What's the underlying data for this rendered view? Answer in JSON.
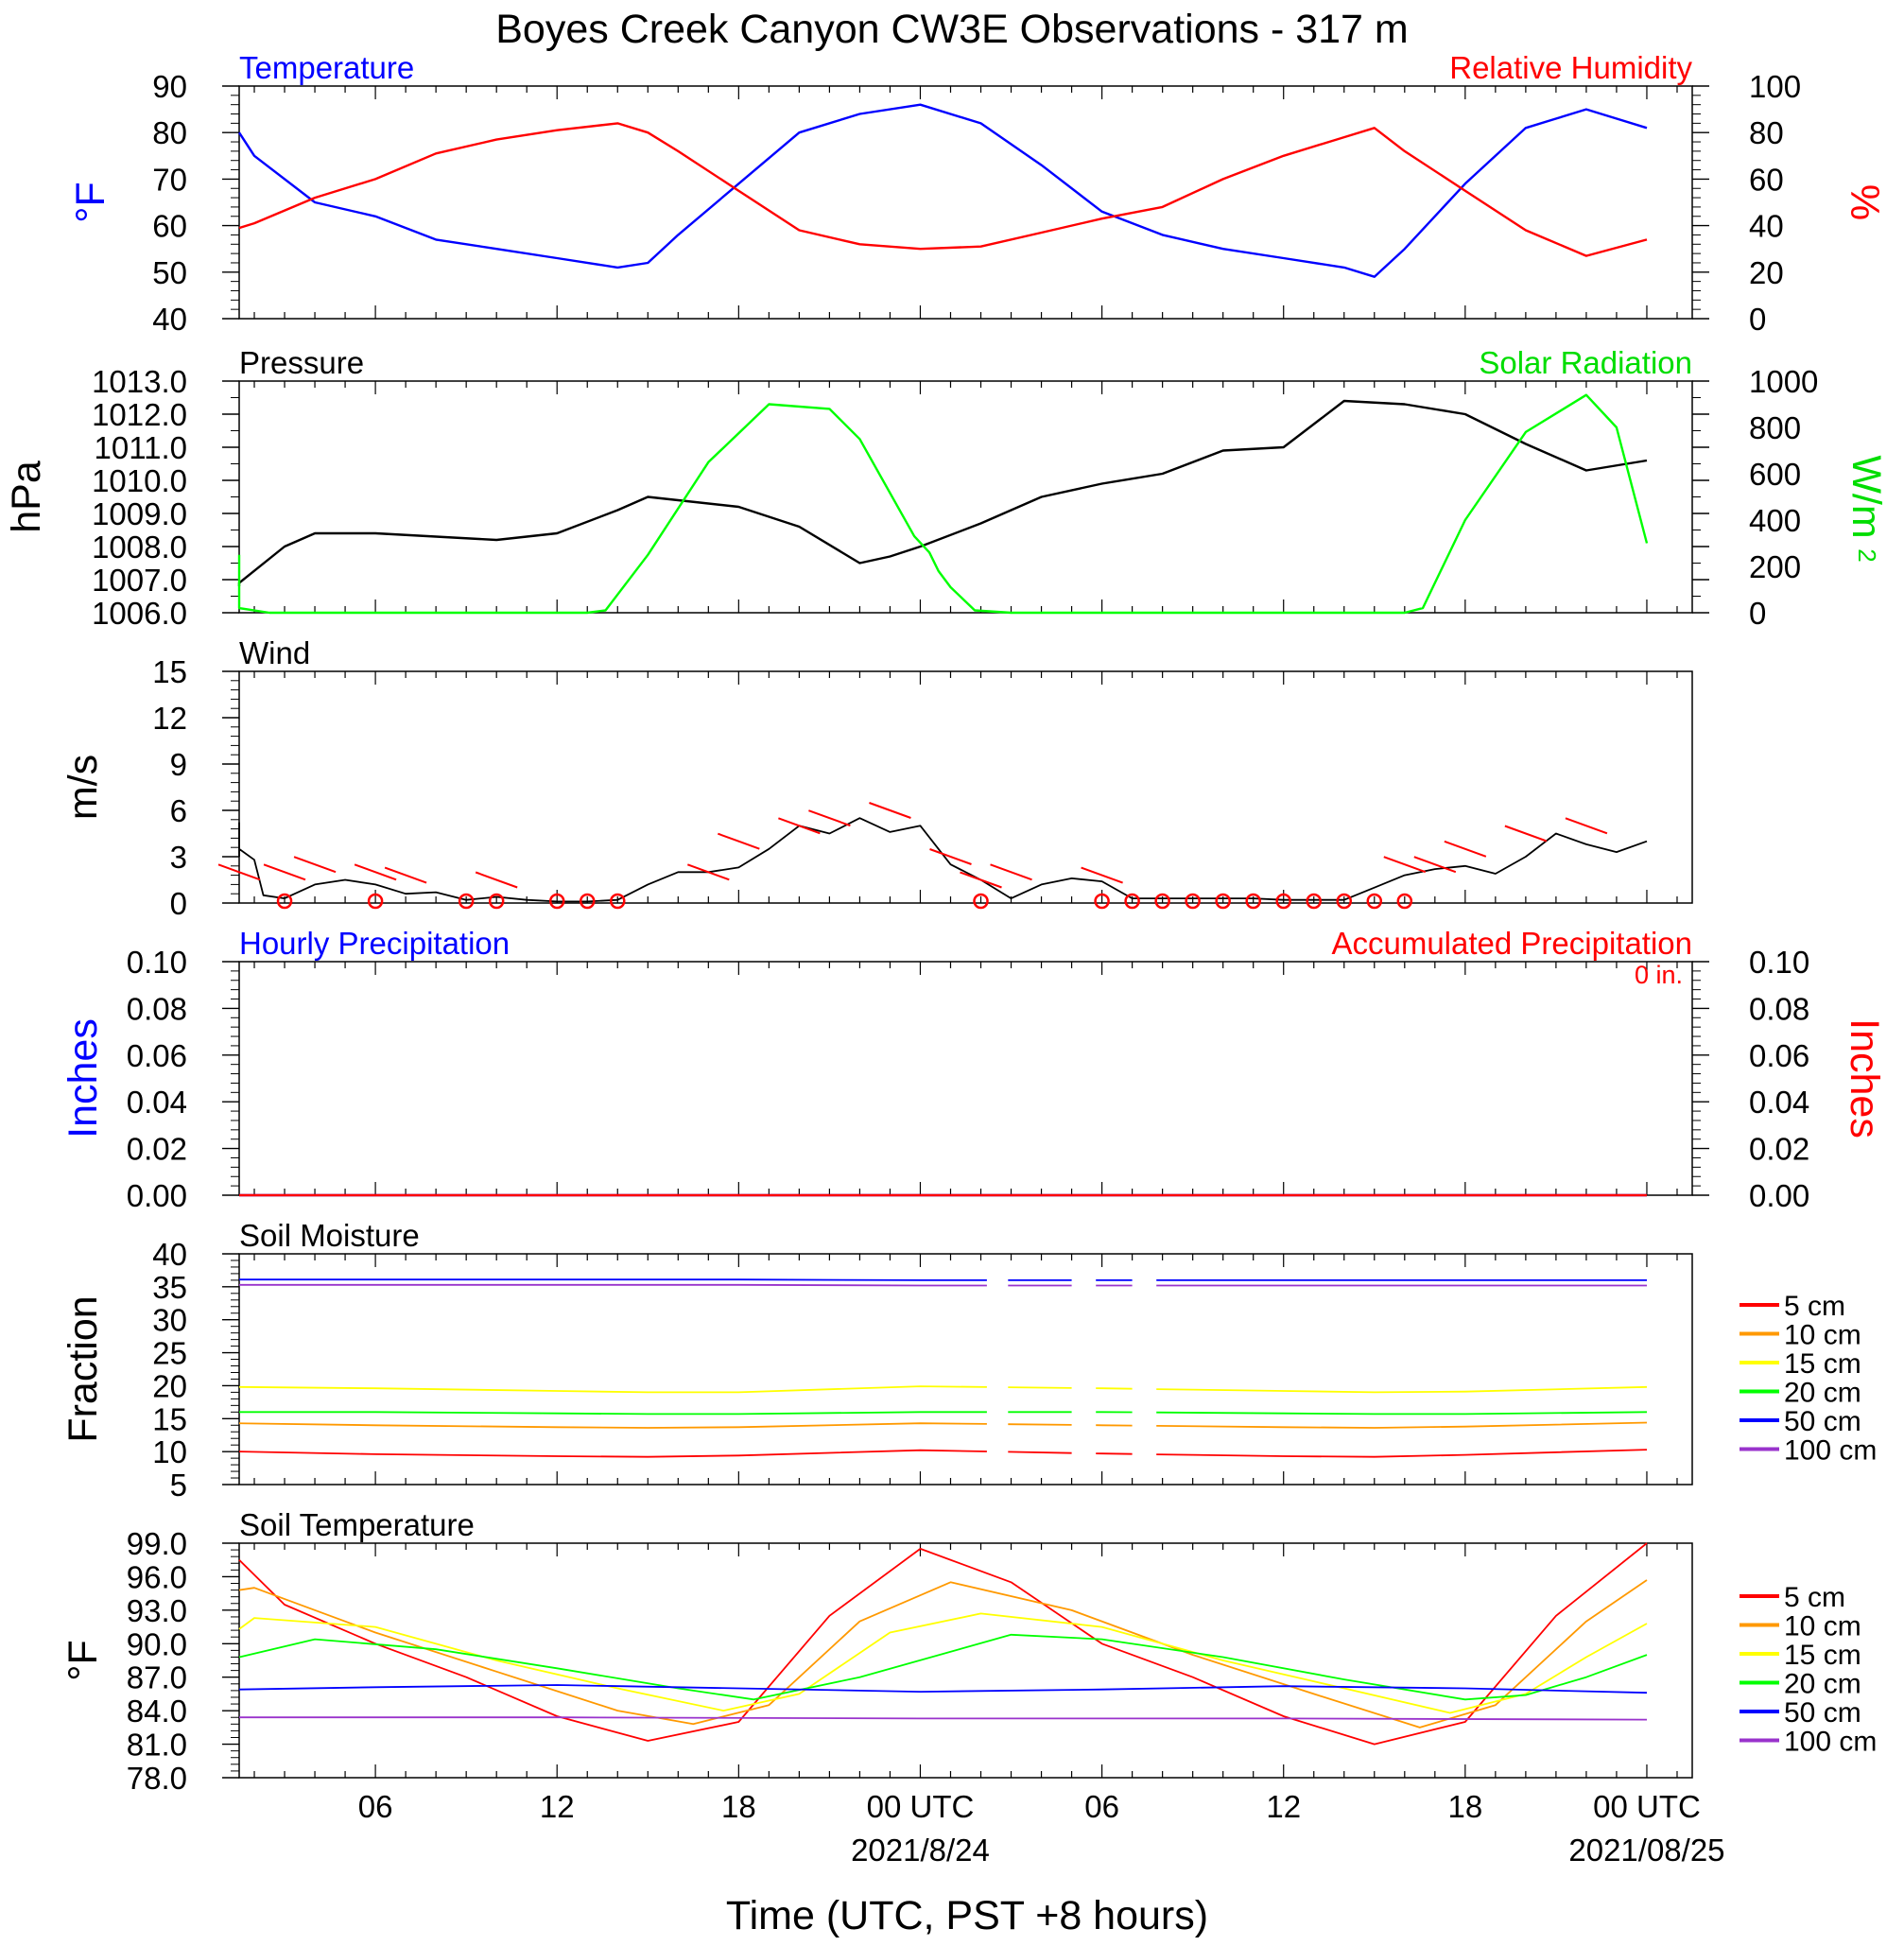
{
  "title": "Boyes Creek Canyon CW3E Observations - 317 m",
  "x_axis": {
    "ticks": [
      "06",
      "12",
      "18",
      "00 UTC",
      "06",
      "12",
      "18",
      "00 UTC"
    ],
    "dates": [
      "2021/8/24",
      "2021/08/25"
    ],
    "label": "Time (UTC, PST +8 hours)"
  },
  "soil_legend": [
    "5 cm",
    "10 cm",
    "15 cm",
    "20 cm",
    "50 cm",
    "100 cm"
  ],
  "accum_text": "0 in.",
  "chart_data": [
    {
      "type": "line",
      "left_title": "Temperature",
      "right_title": "Relative Humidity",
      "ylabel": "°F",
      "ylabel2": "%",
      "ylim": [
        40,
        90
      ],
      "y2lim": [
        0,
        100
      ],
      "yticks": [
        "40",
        "50",
        "60",
        "70",
        "80",
        "90"
      ],
      "y2ticks": [
        "0",
        "20",
        "40",
        "60",
        "80",
        "100"
      ],
      "x_hours": [
        0,
        2,
        4,
        6,
        8,
        10,
        12,
        14,
        15,
        16,
        18,
        20,
        22,
        24,
        26,
        28,
        30,
        32,
        34,
        36,
        38,
        39,
        40,
        42,
        44,
        46,
        48
      ],
      "series": [
        {
          "name": "Temperature",
          "color": "#0000ff",
          "axis": "left",
          "values": [
            80,
            75,
            65,
            62,
            57,
            55,
            53,
            51,
            52,
            58,
            69,
            80,
            84,
            86,
            82,
            73,
            63,
            58,
            55,
            53,
            51,
            49,
            55,
            69,
            81,
            85,
            81
          ]
        },
        {
          "name": "Relative Humidity",
          "color": "#ff0000",
          "axis": "left2",
          "values": [
            39,
            41,
            52,
            60,
            71,
            77,
            81,
            84,
            80,
            72,
            55,
            38,
            32,
            30,
            31,
            37,
            43,
            48,
            60,
            70,
            78,
            82,
            72,
            55,
            38,
            27,
            34
          ]
        }
      ]
    },
    {
      "type": "line",
      "left_title": "Pressure",
      "right_title": "Solar Radiation",
      "ylabel": "hPa",
      "ylabel2": "W/m",
      "ylabel2_sup": "2",
      "ylim": [
        1006,
        1013
      ],
      "y2lim": [
        0,
        1000
      ],
      "yticks": [
        "1006.0",
        "1007.0",
        "1008.0",
        "1009.0",
        "1010.0",
        "1011.0",
        "1012.0",
        "1013.0"
      ],
      "y2ticks": [
        "0",
        "200",
        "400",
        "600",
        "800",
        "1000"
      ],
      "series": [
        {
          "name": "Pressure",
          "color": "#000000",
          "axis": "left",
          "x_hours": [
            0,
            1,
            3,
            4,
            6,
            8,
            10,
            12,
            14,
            15,
            16,
            18,
            20,
            22,
            23,
            24,
            26,
            28,
            30,
            32,
            34,
            36,
            38,
            40,
            42,
            44,
            46,
            48
          ],
          "values": [
            1006.8,
            1006.9,
            1008.0,
            1008.4,
            1008.4,
            1008.3,
            1008.2,
            1008.4,
            1009.1,
            1009.5,
            1009.4,
            1009.2,
            1008.6,
            1007.5,
            1007.7,
            1008.0,
            1008.7,
            1009.5,
            1009.9,
            1010.2,
            1010.9,
            1011.0,
            1012.4,
            1012.3,
            1012.0,
            1011.1,
            1010.3,
            1010.6
          ]
        },
        {
          "name": "Solar Radiation",
          "color": "#00ff00",
          "axis": "left2",
          "x_hours": [
            0,
            0.8,
            1.5,
            2.5,
            3.5,
            13,
            13.6,
            15,
            17,
            19,
            21,
            22,
            23.8,
            24.3,
            24.6,
            25,
            25.8,
            27,
            40,
            40.6,
            42,
            44,
            46,
            47,
            48
          ],
          "values": [
            250,
            80,
            20,
            0,
            0,
            0,
            10,
            250,
            650,
            900,
            880,
            750,
            330,
            260,
            180,
            110,
            10,
            0,
            0,
            20,
            400,
            780,
            940,
            800,
            300
          ]
        }
      ]
    },
    {
      "type": "line",
      "left_title": "Wind",
      "ylabel": "m/s",
      "ylim": [
        0,
        15
      ],
      "yticks": [
        "0",
        "3",
        "6",
        "9",
        "12",
        "15"
      ],
      "x_hours": [
        0,
        0.5,
        1,
        1.5,
        2,
        2.3,
        3,
        4,
        5,
        6,
        7,
        8,
        9,
        10,
        11,
        12,
        13,
        14,
        15,
        16,
        17,
        18,
        19,
        20,
        21,
        22,
        23,
        24,
        25,
        26,
        27,
        28,
        29,
        30,
        31,
        32,
        33,
        34,
        35,
        36,
        37,
        38,
        39,
        40,
        41,
        42,
        43,
        44,
        45,
        46,
        47,
        48
      ],
      "series": [
        {
          "name": "Wind",
          "color": "#000000",
          "values": [
            3.0,
            5.2,
            4.0,
            3.5,
            2.8,
            0.5,
            0.3,
            1.2,
            1.5,
            1.2,
            0.6,
            0.7,
            0.2,
            0.4,
            0.2,
            0.1,
            0.1,
            0.2,
            1.2,
            2.0,
            2.0,
            2.3,
            3.5,
            5.0,
            4.5,
            5.5,
            4.6,
            5.0,
            2.5,
            1.5,
            0.3,
            1.2,
            1.6,
            1.4,
            0.3,
            0.3,
            0.3,
            0.3,
            0.3,
            0.2,
            0.2,
            0.2,
            1.0,
            1.8,
            2.2,
            2.4,
            1.9,
            3.0,
            4.5,
            3.8,
            3.3,
            4.0
          ]
        }
      ],
      "barbs": [
        {
          "x_hours": 1.0,
          "speed": 2.0
        },
        {
          "x_hours": 3.0,
          "speed": 2.0
        },
        {
          "x_hours": 4.0,
          "speed": 2.5
        },
        {
          "x_hours": 6.0,
          "speed": 2.0
        },
        {
          "x_hours": 7.0,
          "speed": 1.8
        },
        {
          "x_hours": 10.0,
          "speed": 1.5
        },
        {
          "x_hours": 17.0,
          "speed": 2.0
        },
        {
          "x_hours": 18.0,
          "speed": 4.0
        },
        {
          "x_hours": 20.0,
          "speed": 5.0
        },
        {
          "x_hours": 21.0,
          "speed": 5.5
        },
        {
          "x_hours": 23.0,
          "speed": 6.0
        },
        {
          "x_hours": 25.0,
          "speed": 3.0
        },
        {
          "x_hours": 26.0,
          "speed": 1.5
        },
        {
          "x_hours": 27.0,
          "speed": 2.0
        },
        {
          "x_hours": 30.0,
          "speed": 1.8
        },
        {
          "x_hours": 40.0,
          "speed": 2.5
        },
        {
          "x_hours": 41.0,
          "speed": 2.5
        },
        {
          "x_hours": 42.0,
          "speed": 3.5
        },
        {
          "x_hours": 44.0,
          "speed": 4.5
        },
        {
          "x_hours": 46.0,
          "speed": 5.0
        }
      ],
      "calm_x_hours": [
        3,
        6,
        9,
        10,
        12,
        13,
        14,
        26,
        30,
        31,
        32,
        33,
        34,
        35,
        36,
        37,
        38,
        39,
        40
      ]
    },
    {
      "type": "line",
      "left_title": "Hourly Precipitation",
      "right_title": "Accumulated Precipitation",
      "ylabel": "Inches",
      "ylabel2": "Inches",
      "ylim": [
        0,
        0.1
      ],
      "yticks": [
        "0.00",
        "0.02",
        "0.04",
        "0.06",
        "0.08",
        "0.10"
      ],
      "series": [
        {
          "name": "Hourly Precipitation",
          "color": "#0000ff",
          "x_hours": [
            0,
            48
          ],
          "values": [
            0,
            0
          ]
        },
        {
          "name": "Accumulated Precipitation",
          "color": "#ff0000",
          "x_hours": [
            0,
            48
          ],
          "values": [
            0,
            0
          ]
        }
      ]
    },
    {
      "type": "line",
      "left_title": "Soil Moisture",
      "ylabel": "Fraction",
      "ylim": [
        5,
        40
      ],
      "yticks": [
        "5",
        "10",
        "15",
        "20",
        "25",
        "30",
        "35",
        "40"
      ],
      "x_hours": [
        0,
        6,
        12,
        15,
        18,
        24,
        30,
        36,
        39,
        42,
        48
      ],
      "gaps_x_hours": [
        [
          26.2,
          26.9
        ],
        [
          29.0,
          29.8
        ],
        [
          31.0,
          31.8
        ]
      ],
      "series": [
        {
          "name": "5 cm",
          "color": "#ff0000",
          "values": [
            10.0,
            9.6,
            9.3,
            9.2,
            9.4,
            10.2,
            9.7,
            9.3,
            9.2,
            9.5,
            10.3
          ]
        },
        {
          "name": "10 cm",
          "color": "#ff9900",
          "values": [
            14.3,
            14.0,
            13.7,
            13.6,
            13.7,
            14.3,
            14.0,
            13.7,
            13.6,
            13.8,
            14.4
          ]
        },
        {
          "name": "15 cm",
          "color": "#ffff00",
          "values": [
            19.8,
            19.6,
            19.2,
            19.0,
            19.0,
            19.9,
            19.6,
            19.2,
            19.0,
            19.1,
            19.8
          ]
        },
        {
          "name": "20 cm",
          "color": "#00ff00",
          "values": [
            16.0,
            16.0,
            15.8,
            15.7,
            15.7,
            16.0,
            16.0,
            15.8,
            15.7,
            15.7,
            16.0
          ]
        },
        {
          "name": "50 cm",
          "color": "#0000ff",
          "values": [
            36.1,
            36.1,
            36.1,
            36.1,
            36.1,
            36.0,
            36.0,
            36.0,
            36.0,
            36.0,
            36.0
          ]
        },
        {
          "name": "100 cm",
          "color": "#9933cc",
          "values": [
            35.3,
            35.3,
            35.3,
            35.3,
            35.3,
            35.2,
            35.2,
            35.2,
            35.2,
            35.2,
            35.2
          ]
        }
      ]
    },
    {
      "type": "line",
      "left_title": "Soil Temperature",
      "ylabel": "°F",
      "ylim": [
        78,
        99
      ],
      "yticks": [
        "78.0",
        "81.0",
        "84.0",
        "87.0",
        "90.0",
        "93.0",
        "96.0",
        "99.0"
      ],
      "series": [
        {
          "name": "5 cm",
          "color": "#ff0000",
          "x_hours": [
            0,
            3,
            6,
            9,
            12,
            15,
            18,
            21,
            24,
            27,
            30,
            33,
            36,
            39,
            42,
            45,
            48
          ],
          "values": [
            97.5,
            93.5,
            90.0,
            87.0,
            83.5,
            81.3,
            83.0,
            92.5,
            98.5,
            95.5,
            90.0,
            87.0,
            83.5,
            81.0,
            83.0,
            92.5,
            99.0
          ]
        },
        {
          "name": "10 cm",
          "color": "#ff9900",
          "x_hours": [
            0,
            2,
            6,
            10,
            14,
            16.5,
            19,
            22,
            25,
            29,
            33,
            37,
            40.5,
            43,
            46,
            48
          ],
          "values": [
            94.8,
            95.0,
            91.0,
            87.5,
            84.0,
            82.8,
            84.5,
            92.0,
            95.5,
            93.0,
            89.0,
            85.5,
            82.5,
            84.5,
            92.0,
            95.7
          ]
        },
        {
          "name": "15 cm",
          "color": "#ffff00",
          "x_hours": [
            0,
            2,
            6,
            10,
            14,
            17.5,
            20,
            23,
            26,
            30,
            34,
            38,
            41.5,
            44,
            46,
            48
          ],
          "values": [
            91.3,
            92.3,
            91.5,
            88.5,
            86.0,
            84.0,
            85.5,
            91.0,
            92.7,
            91.5,
            88.5,
            86.0,
            83.8,
            85.5,
            88.8,
            91.8
          ]
        },
        {
          "name": "20 cm",
          "color": "#00ff00",
          "x_hours": [
            0,
            4,
            8,
            12,
            16,
            18.5,
            22,
            27,
            30,
            34,
            38,
            42,
            44,
            46,
            48
          ],
          "values": [
            88.8,
            90.4,
            89.5,
            87.8,
            86.0,
            85.0,
            87.0,
            90.8,
            90.4,
            88.8,
            86.8,
            85.0,
            85.4,
            87.0,
            89.0
          ]
        },
        {
          "name": "50 cm",
          "color": "#0000ff",
          "x_hours": [
            0,
            6,
            12,
            18,
            24,
            30,
            36,
            42,
            48
          ],
          "values": [
            85.9,
            86.1,
            86.3,
            86.0,
            85.7,
            85.9,
            86.2,
            86.0,
            85.6
          ]
        },
        {
          "name": "100 cm",
          "color": "#9933cc",
          "x_hours": [
            0,
            12,
            24,
            36,
            48
          ],
          "values": [
            83.4,
            83.4,
            83.3,
            83.3,
            83.2
          ]
        }
      ]
    }
  ]
}
